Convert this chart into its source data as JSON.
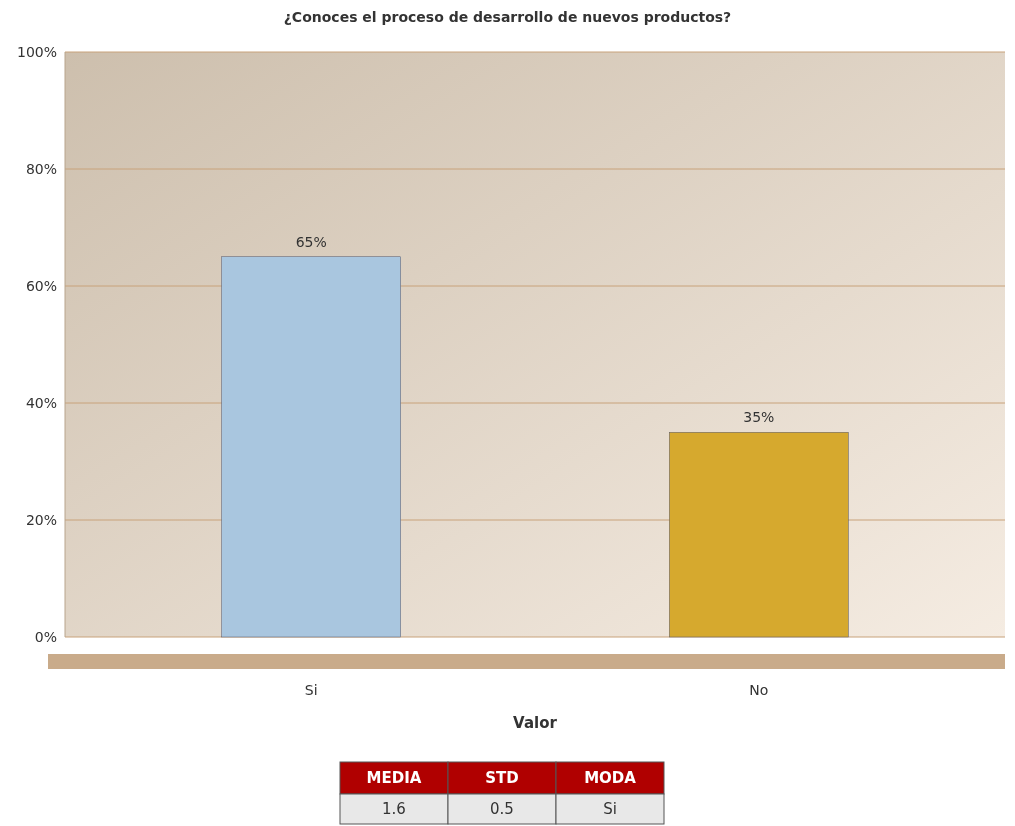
{
  "chart_data": {
    "type": "bar",
    "title": "¿Conoces el proceso de desarrollo de nuevos productos?",
    "xlabel": "Valor",
    "categories": [
      "Si",
      "No"
    ],
    "values": [
      65,
      35
    ],
    "colors": [
      "#a9c6df",
      "#d6a92e"
    ],
    "ylim": [
      0,
      100
    ],
    "yticks": [
      {
        "value": 0,
        "label": "0%"
      },
      {
        "value": 20,
        "label": "20%"
      },
      {
        "value": 40,
        "label": "40%"
      },
      {
        "value": 60,
        "label": "60%"
      },
      {
        "value": 80,
        "label": "80%"
      },
      {
        "value": 100,
        "label": "100%"
      }
    ],
    "grid": "y",
    "value_labels": [
      "65%",
      "35%"
    ],
    "annotations": [
      "MEDIA",
      "STD",
      "MODA",
      "1.6",
      "0.5",
      "Si"
    ]
  }
}
